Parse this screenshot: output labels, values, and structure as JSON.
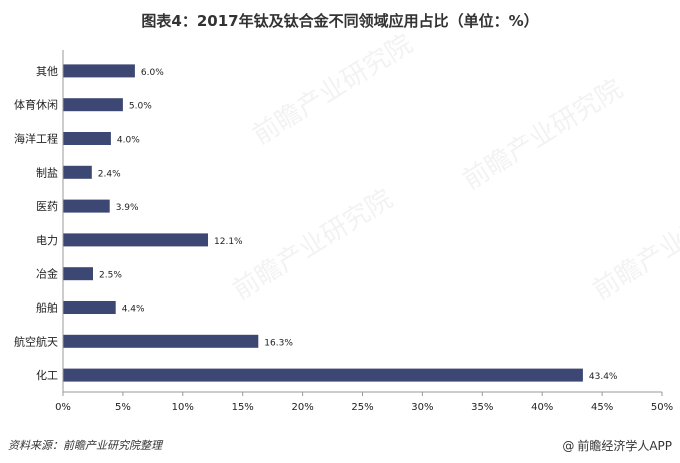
{
  "page": {
    "title": "图表4：2017年钛及钛合金不同领域应用占比（单位：%）",
    "source": "资料来源：前瞻产业研究院整理",
    "brand": "前瞻经济学人APP",
    "watermark": "前瞻产业研究院",
    "brand_icon": "at-sign-icon"
  },
  "colors": {
    "bar": "#3d4773",
    "axis": "#999999",
    "text": "#222222"
  },
  "chart_data": {
    "type": "bar",
    "orientation": "horizontal",
    "title": "图表4：2017年钛及钛合金不同领域应用占比（单位：%）",
    "xlabel": "",
    "ylabel": "",
    "xlim": [
      0,
      50
    ],
    "ticks": [
      "0%",
      "5%",
      "10%",
      "15%",
      "20%",
      "25%",
      "30%",
      "35%",
      "40%",
      "45%",
      "50%"
    ],
    "tick_values": [
      0,
      5,
      10,
      15,
      20,
      25,
      30,
      35,
      40,
      45,
      50
    ],
    "grid": false,
    "categories": [
      "其他",
      "体育休闲",
      "海洋工程",
      "制盐",
      "医药",
      "电力",
      "冶金",
      "船舶",
      "航空航天",
      "化工"
    ],
    "values": [
      6.0,
      5.0,
      4.0,
      2.4,
      3.9,
      12.1,
      2.5,
      4.4,
      16.3,
      43.4
    ],
    "data_labels": [
      "6.0%",
      "5.0%",
      "4.0%",
      "2.4%",
      "3.9%",
      "12.1%",
      "2.5%",
      "4.4%",
      "16.3%",
      "43.4%"
    ]
  }
}
